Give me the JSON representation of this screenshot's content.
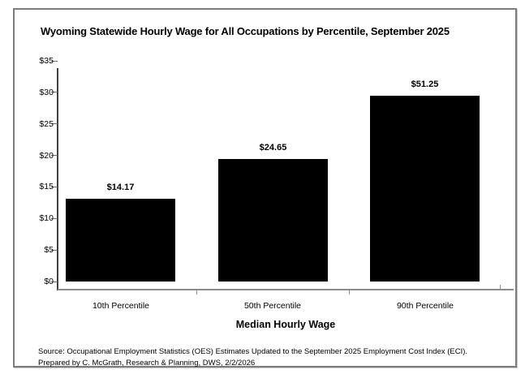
{
  "chart_data": {
    "type": "bar",
    "title": "Wyoming Statewide Hourly Wage for All Occupations by Percentile, September 2025",
    "categories": [
      "10th Percentile",
      "50th Percentile",
      "90th Percentile"
    ],
    "values": [
      14.17,
      24.65,
      51.25
    ],
    "data_labels": [
      "$14.17",
      "$24.65",
      "$51.25"
    ],
    "drawn_values": [
      13.1,
      19.4,
      29.5
    ],
    "xlabel": "Median Hourly Wage",
    "ylabel": "",
    "ylim": [
      0,
      35
    ],
    "yticks": [
      0,
      5,
      10,
      15,
      20,
      25,
      30,
      35
    ],
    "ytick_labels": [
      "$0",
      "$5",
      "$10",
      "$15",
      "$20",
      "$25",
      "$30",
      "$35"
    ],
    "bar_color": "#000000",
    "grid": false,
    "legend": false
  },
  "source": {
    "line1": "Source: Occupational Employment Statistics (OES) Estimates Updated to the September 2025 Employment Cost Index (ECI).",
    "line2": "Prepared by C. McGrath, Research & Planning, DWS, 2/2/2026"
  }
}
